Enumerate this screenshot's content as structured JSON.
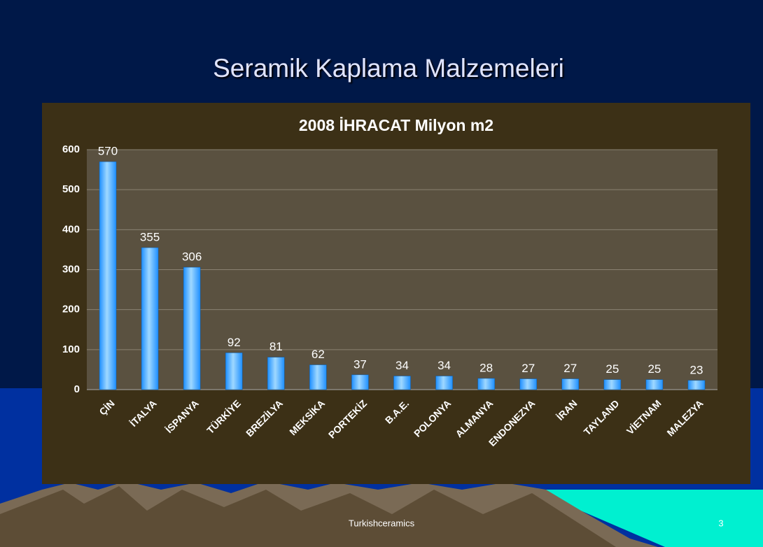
{
  "slide": {
    "title": "Seramik Kaplama Malzemeleri",
    "footer": "Turkishceramics",
    "page_number": "3"
  },
  "chart_data": {
    "type": "bar",
    "title": "2008 İHRACAT  Milyon m2",
    "categories": [
      "ÇİN",
      "İTALYA",
      "İSPANYA",
      "TÜRKİYE",
      "BREZİLYA",
      "MEKSİKA",
      "PORTEKİZ",
      "B.A.E.",
      "POLONYA",
      "ALMANYA",
      "ENDONEZYA",
      "İRAN",
      "TAYLAND",
      "VİETNAM",
      "MALEZYA"
    ],
    "values": [
      570,
      355,
      306,
      92,
      81,
      62,
      37,
      34,
      34,
      28,
      27,
      27,
      25,
      25,
      23
    ],
    "color": "#1e8fff",
    "ylim": [
      0,
      600
    ],
    "yticks": [
      0,
      100,
      200,
      300,
      400,
      500,
      600
    ],
    "grid": true
  }
}
